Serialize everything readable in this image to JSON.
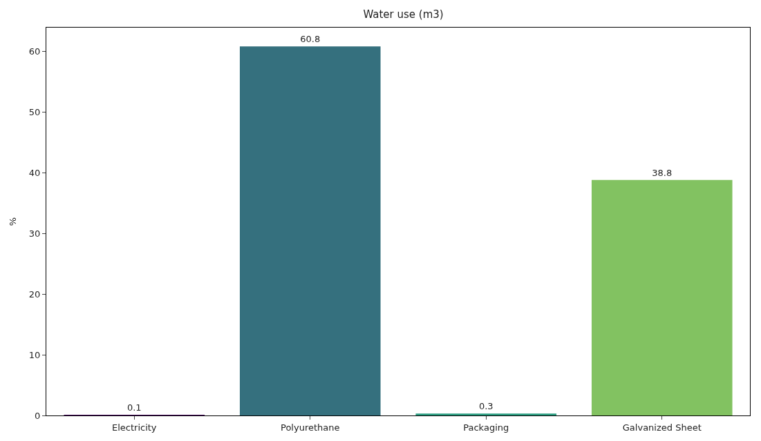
{
  "chart_data": {
    "type": "bar",
    "title": "Water use (m3)",
    "ylabel": "%",
    "categories": [
      "Electricity",
      "Polyurethane",
      "Packaging",
      "Galvanized Sheet"
    ],
    "values": [
      0.1,
      60.8,
      0.3,
      38.8
    ],
    "colors": [
      "#46085c",
      "#35707e",
      "#2a9d80",
      "#82c261"
    ],
    "ylim": [
      0,
      63.9
    ],
    "yticks": [
      0,
      10,
      20,
      30,
      40,
      50,
      60
    ],
    "data_labels": true,
    "grid": false,
    "legend": false
  }
}
